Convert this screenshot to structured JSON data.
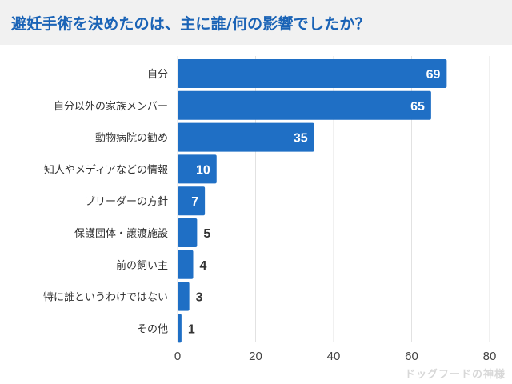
{
  "title": "避妊手術を決めたのは、主に誰/何の影響でしたか？",
  "watermark": "ドッグフードの神様",
  "colors": {
    "bar": "#1f6fc5",
    "title": "#1a63b6",
    "title_bg": "#f1f1f1",
    "grid": "#e2e2e2"
  },
  "chart_data": {
    "type": "bar",
    "orientation": "horizontal",
    "categories": [
      "自分",
      "自分以外の家族メンバー",
      "動物病院の勧め",
      "知人やメディアなどの情報",
      "ブリーダーの方針",
      "保護団体・譲渡施設",
      "前の飼い主",
      "特に誰というわけではない",
      "その他"
    ],
    "values": [
      69,
      65,
      35,
      10,
      7,
      5,
      4,
      3,
      1
    ],
    "value_labels": [
      "69",
      "65",
      "35",
      "10",
      "7",
      "5",
      "4",
      "3",
      "1"
    ],
    "xlim": [
      0,
      80
    ],
    "xticks": [
      0,
      20,
      40,
      60,
      80
    ],
    "xtick_labels": [
      "0",
      "20",
      "40",
      "60",
      "80"
    ],
    "grid": true
  }
}
